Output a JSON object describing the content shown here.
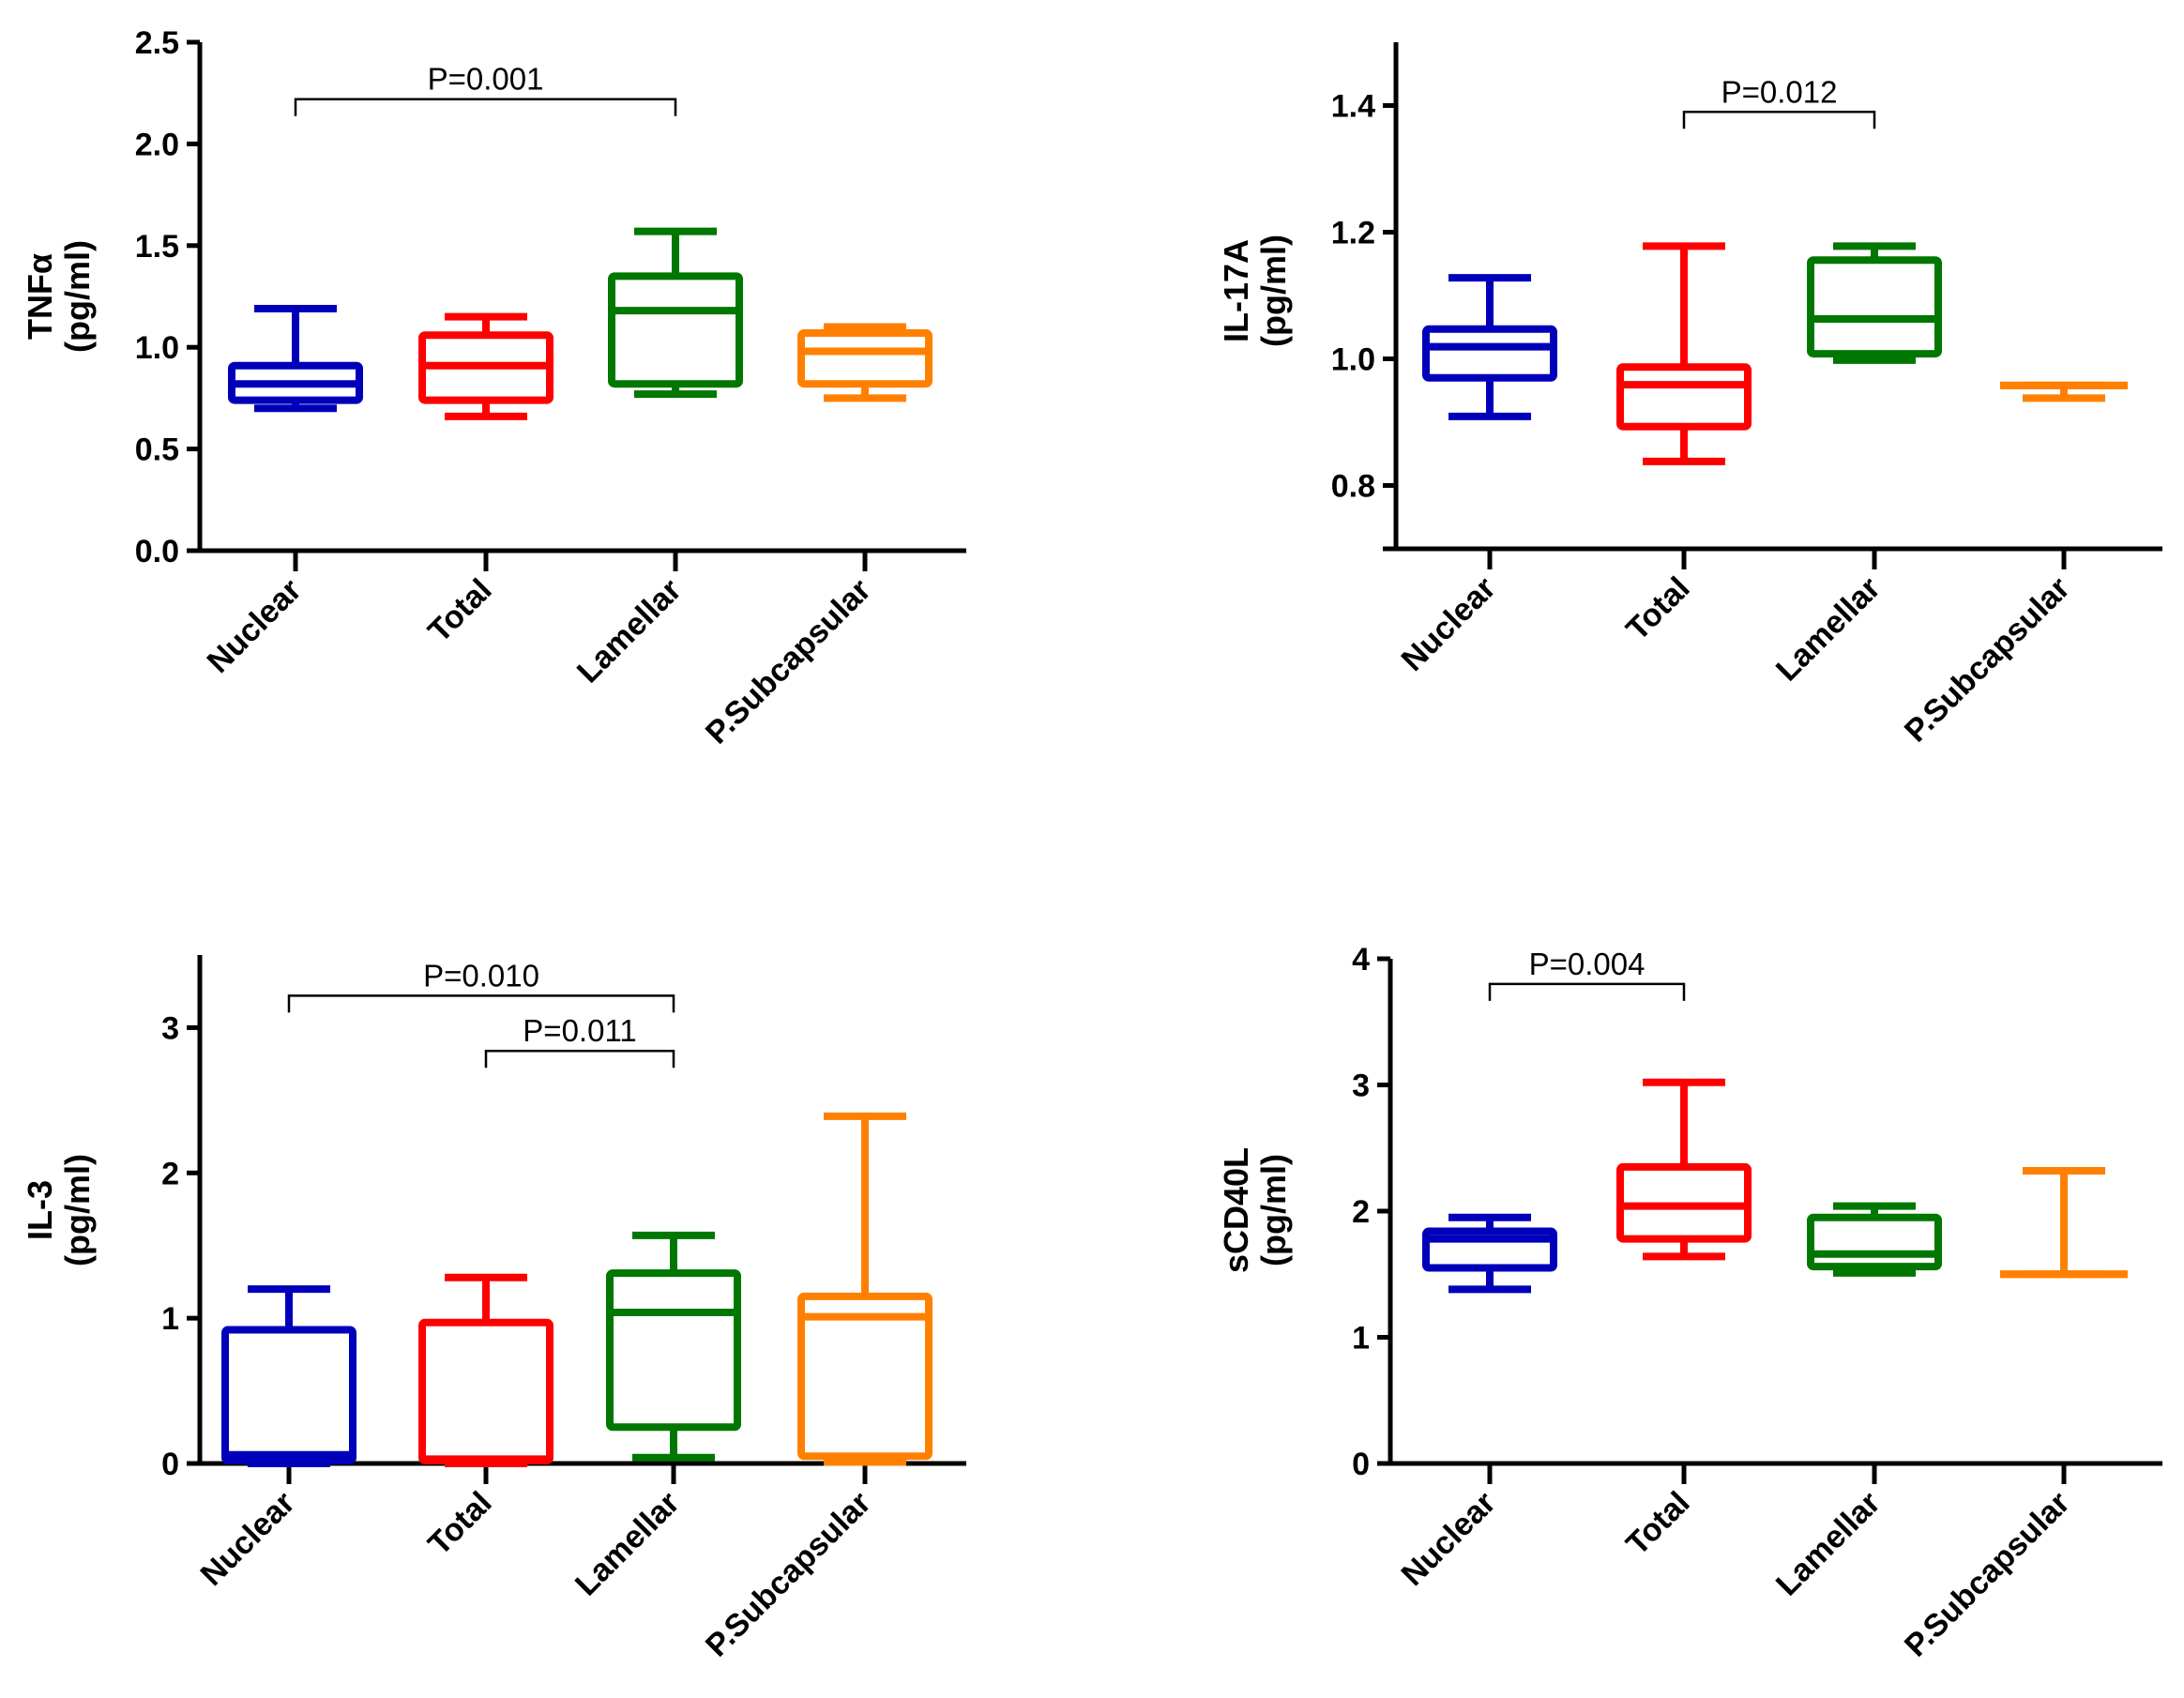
{
  "chart_data": [
    {
      "type": "box",
      "title": "",
      "ylabel": [
        "TNFα",
        "(pg/ml)"
      ],
      "xlabel": "",
      "categories": [
        "Nuclear",
        "Total",
        "Lamellar",
        "P.Subcapsular"
      ],
      "ylim": [
        0,
        2.5
      ],
      "yticks": [
        0.0,
        0.5,
        1.0,
        1.5,
        2.0,
        2.5
      ],
      "ytick_labels": [
        "0.0",
        "0.5",
        "1.0",
        "1.5",
        "2.0",
        "2.5"
      ],
      "series": [
        {
          "name": "Nuclear",
          "color": "#0000BB",
          "min": 0.7,
          "q1": 0.74,
          "median": 0.82,
          "q3": 0.91,
          "max": 1.19
        },
        {
          "name": "Total",
          "color": "#FF0000",
          "min": 0.66,
          "q1": 0.74,
          "median": 0.91,
          "q3": 1.06,
          "max": 1.15
        },
        {
          "name": "Lamellar",
          "color": "#007700",
          "min": 0.77,
          "q1": 0.82,
          "median": 1.18,
          "q3": 1.35,
          "max": 1.57
        },
        {
          "name": "P.Subcapsular",
          "color": "#FF8000",
          "min": 0.75,
          "q1": 0.82,
          "median": 0.98,
          "q3": 1.07,
          "max": 1.1
        }
      ],
      "significance": [
        {
          "from": "Nuclear",
          "to": "Lamellar",
          "label": "P=0.001",
          "level": 2.22
        }
      ]
    },
    {
      "type": "box",
      "title": "",
      "ylabel": [
        "IL-17A",
        "(pg/ml)"
      ],
      "xlabel": "",
      "categories": [
        "Nuclear",
        "Total",
        "Lamellar",
        "P.Subcapsular"
      ],
      "ylim": [
        0.7,
        1.5
      ],
      "yticks": [
        0.8,
        1.0,
        1.2,
        1.4
      ],
      "ytick_labels": [
        "0.8",
        "1.0",
        "1.2",
        "1.4"
      ],
      "series": [
        {
          "name": "Nuclear",
          "color": "#0000BB",
          "min": 0.909,
          "q1": 0.97,
          "median": 1.019,
          "q3": 1.047,
          "max": 1.128
        },
        {
          "name": "Total",
          "color": "#FF0000",
          "min": 0.838,
          "q1": 0.893,
          "median": 0.959,
          "q3": 0.987,
          "max": 1.178
        },
        {
          "name": "Lamellar",
          "color": "#007700",
          "min": 0.998,
          "q1": 1.008,
          "median": 1.063,
          "q3": 1.156,
          "max": 1.178
        },
        {
          "name": "P.Subcapsular",
          "color": "#FF8000",
          "min": 0.938,
          "q1": 0.958,
          "median": 0.958,
          "q3": 0.958,
          "max": 0.958
        }
      ],
      "significance": [
        {
          "from": "Total",
          "to": "Lamellar",
          "label": "P=0.012",
          "level": 1.39
        }
      ]
    },
    {
      "type": "box",
      "title": "",
      "ylabel": [
        "IL-3",
        "(pg/ml)"
      ],
      "xlabel": "",
      "categories": [
        "Nuclear",
        "Total",
        "Lamellar",
        "P.Subcapsular"
      ],
      "ylim": [
        0,
        3.5
      ],
      "yticks": [
        0,
        1,
        2,
        3
      ],
      "ytick_labels": [
        "0",
        "1",
        "2",
        "3"
      ],
      "series": [
        {
          "name": "Nuclear",
          "color": "#0000BB",
          "min": 0.0,
          "q1": 0.02,
          "median": 0.06,
          "q3": 0.92,
          "max": 1.2
        },
        {
          "name": "Total",
          "color": "#FF0000",
          "min": 0.0,
          "q1": 0.02,
          "median": 0.03,
          "q3": 0.97,
          "max": 1.28
        },
        {
          "name": "Lamellar",
          "color": "#007700",
          "min": 0.04,
          "q1": 0.25,
          "median": 1.04,
          "q3": 1.31,
          "max": 1.57
        },
        {
          "name": "P.Subcapsular",
          "color": "#FF8000",
          "min": 0.01,
          "q1": 0.05,
          "median": 1.01,
          "q3": 1.15,
          "max": 2.39
        }
      ],
      "significance": [
        {
          "from": "Nuclear",
          "to": "Lamellar",
          "label": "P=0.010",
          "level": 3.22
        },
        {
          "from": "Total",
          "to": "Lamellar",
          "label": "P=0.011",
          "level": 2.84
        }
      ]
    },
    {
      "type": "box",
      "title": "",
      "ylabel": [
        "sCD40L",
        "(pg/ml)"
      ],
      "xlabel": "",
      "categories": [
        "Nuclear",
        "Total",
        "Lamellar",
        "P.Subcapsular"
      ],
      "ylim": [
        0,
        4
      ],
      "yticks": [
        0,
        1,
        2,
        3,
        4
      ],
      "ytick_labels": [
        "0",
        "1",
        "2",
        "3",
        "4"
      ],
      "series": [
        {
          "name": "Nuclear",
          "color": "#0000BB",
          "min": 1.38,
          "q1": 1.55,
          "median": 1.78,
          "q3": 1.84,
          "max": 1.95
        },
        {
          "name": "Total",
          "color": "#FF0000",
          "min": 1.64,
          "q1": 1.78,
          "median": 2.04,
          "q3": 2.35,
          "max": 3.02
        },
        {
          "name": "Lamellar",
          "color": "#007700",
          "min": 1.51,
          "q1": 1.56,
          "median": 1.66,
          "q3": 1.95,
          "max": 2.04
        },
        {
          "name": "P.Subcapsular",
          "color": "#FF8000",
          "min": 1.5,
          "q1": 1.5,
          "median": 1.5,
          "q3": 1.5,
          "max": 2.32
        }
      ],
      "significance": [
        {
          "from": "Nuclear",
          "to": "Total",
          "label": "P=0.004",
          "level": 3.8
        }
      ]
    }
  ]
}
